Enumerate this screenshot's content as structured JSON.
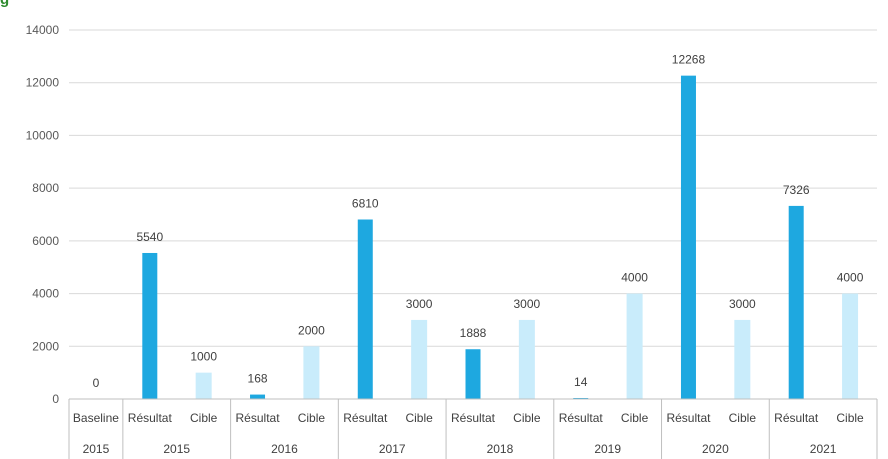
{
  "header": {
    "partial_title": "g"
  },
  "colors": {
    "resultat": "#1ea8e0",
    "cible": "#c9ecfb",
    "grid": "#d9d9d9",
    "axis": "#bfbfbf"
  },
  "chart_data": {
    "type": "bar",
    "ylim": [
      0,
      14000
    ],
    "yticks": [
      0,
      2000,
      4000,
      6000,
      8000,
      10000,
      12000,
      14000
    ],
    "grid": true,
    "legend": "none",
    "categories": [
      {
        "label": "Baseline",
        "group": "2015",
        "kind": "baseline",
        "value": 0
      },
      {
        "label": "Résultat",
        "group": "2015",
        "kind": "resultat",
        "value": 5540
      },
      {
        "label": "Cible",
        "group": "2015",
        "kind": "cible",
        "value": 1000
      },
      {
        "label": "Résultat",
        "group": "2016",
        "kind": "resultat",
        "value": 168
      },
      {
        "label": "Cible",
        "group": "2016",
        "kind": "cible",
        "value": 2000
      },
      {
        "label": "Résultat",
        "group": "2017",
        "kind": "resultat",
        "value": 6810
      },
      {
        "label": "Cible",
        "group": "2017",
        "kind": "cible",
        "value": 3000
      },
      {
        "label": "Résultat",
        "group": "2018",
        "kind": "resultat",
        "value": 1888
      },
      {
        "label": "Cible",
        "group": "2018",
        "kind": "cible",
        "value": 3000
      },
      {
        "label": "Résultat",
        "group": "2019",
        "kind": "resultat",
        "value": 14
      },
      {
        "label": "Cible",
        "group": "2019",
        "kind": "cible",
        "value": 4000
      },
      {
        "label": "Résultat",
        "group": "2020",
        "kind": "resultat",
        "value": 12268
      },
      {
        "label": "Cible",
        "group": "2020",
        "kind": "cible",
        "value": 3000
      },
      {
        "label": "Résultat",
        "group": "2021",
        "kind": "resultat",
        "value": 7326
      },
      {
        "label": "Cible",
        "group": "2021",
        "kind": "cible",
        "value": 4000
      }
    ],
    "groups": [
      "2015",
      "2015",
      "2016",
      "2017",
      "2018",
      "2019",
      "2020",
      "2021"
    ]
  }
}
